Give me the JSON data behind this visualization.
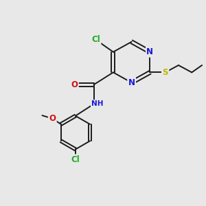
{
  "bg_color": "#e8e8e8",
  "bond_color": "#1a1a1a",
  "atom_colors": {
    "N": "#1515dd",
    "O": "#cc1111",
    "S": "#bbbb00",
    "Cl": "#22aa22",
    "C": "#1a1a1a"
  },
  "lw": 1.4,
  "fs": 8.5,
  "figsize": [
    3.0,
    3.0
  ],
  "dpi": 100
}
